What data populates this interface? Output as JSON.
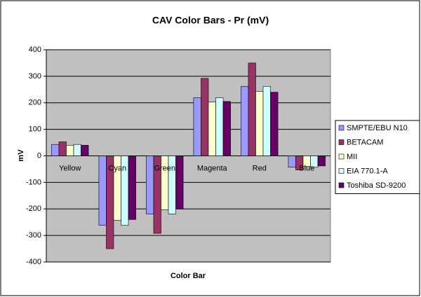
{
  "chart_data": {
    "type": "bar",
    "title": "CAV Color Bars - Pr (mV)",
    "x_label": "Color Bar",
    "y_label": "mV",
    "categories": [
      "Yellow",
      "Cyan",
      "Green",
      "Magenta",
      "Red",
      "Blue"
    ],
    "series": [
      {
        "name": "SMPTE/EBU N10",
        "color": "#9999ff",
        "values": [
          43,
          -262,
          -219,
          219,
          262,
          -43
        ]
      },
      {
        "name": "BETACAM",
        "color": "#993366",
        "values": [
          53,
          -350,
          -292,
          292,
          350,
          -53
        ]
      },
      {
        "name": "MII",
        "color": "#ffffcc",
        "values": [
          40,
          -243,
          -203,
          203,
          243,
          -40
        ]
      },
      {
        "name": "EIA 770.1-A",
        "color": "#ccffff",
        "values": [
          43,
          -262,
          -219,
          219,
          262,
          -43
        ]
      },
      {
        "name": "Toshiba SD-9200",
        "color": "#660066",
        "values": [
          40,
          -240,
          -200,
          205,
          240,
          -38
        ]
      }
    ],
    "ylim": [
      -400,
      400
    ],
    "yticks": [
      -400,
      -300,
      -200,
      -100,
      0,
      100,
      200,
      300,
      400
    ],
    "grid": true,
    "legend": "right"
  }
}
